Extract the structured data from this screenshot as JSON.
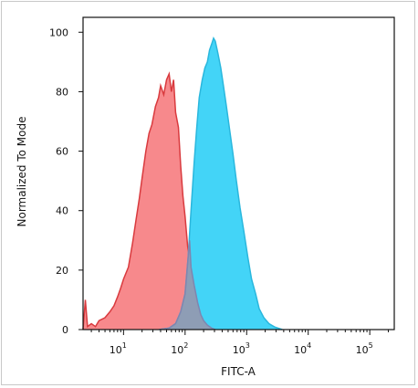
{
  "chart_data": {
    "type": "area",
    "title": "",
    "xlabel": "FITC-A",
    "ylabel": "Normalized To Mode",
    "xscale": "log",
    "xlim": [
      2.2,
      250000
    ],
    "ylim": [
      0,
      105
    ],
    "grid": false,
    "legend": "none",
    "x_ticks": [
      {
        "value": 10,
        "base": "10",
        "exp": "1"
      },
      {
        "value": 100,
        "base": "10",
        "exp": "2"
      },
      {
        "value": 1000,
        "base": "10",
        "exp": "3"
      },
      {
        "value": 10000,
        "base": "10",
        "exp": "4"
      },
      {
        "value": 100000,
        "base": "10",
        "exp": "5"
      }
    ],
    "y_ticks": [
      "0",
      "20",
      "40",
      "60",
      "80",
      "100"
    ],
    "y_tick_values": [
      0,
      20,
      40,
      60,
      80,
      100
    ],
    "series": [
      {
        "fill": "#f7898c",
        "stroke": "#d93a3e",
        "points": [
          [
            2.2,
            0
          ],
          [
            2.4,
            10
          ],
          [
            2.6,
            1
          ],
          [
            3,
            2
          ],
          [
            3.5,
            1
          ],
          [
            4,
            3
          ],
          [
            5,
            4
          ],
          [
            6,
            6
          ],
          [
            7,
            8
          ],
          [
            8,
            11
          ],
          [
            9,
            14
          ],
          [
            10,
            17
          ],
          [
            12,
            21
          ],
          [
            14,
            29
          ],
          [
            16,
            37
          ],
          [
            18,
            44
          ],
          [
            20,
            51
          ],
          [
            23,
            60
          ],
          [
            26,
            66
          ],
          [
            29,
            69
          ],
          [
            33,
            75
          ],
          [
            37,
            78
          ],
          [
            40,
            82
          ],
          [
            45,
            79
          ],
          [
            50,
            84
          ],
          [
            55,
            86
          ],
          [
            60,
            80
          ],
          [
            65,
            84
          ],
          [
            70,
            73
          ],
          [
            78,
            68
          ],
          [
            85,
            55
          ],
          [
            92,
            45
          ],
          [
            100,
            38
          ],
          [
            110,
            28
          ],
          [
            125,
            21
          ],
          [
            140,
            15
          ],
          [
            160,
            9
          ],
          [
            180,
            5
          ],
          [
            200,
            3
          ],
          [
            230,
            1.5
          ],
          [
            270,
            0.5
          ],
          [
            310,
            0
          ]
        ]
      },
      {
        "fill": "#43d4f7",
        "stroke": "#2ab7dd",
        "points": [
          [
            38,
            0
          ],
          [
            55,
            0.5
          ],
          [
            70,
            2
          ],
          [
            85,
            6
          ],
          [
            100,
            12
          ],
          [
            112,
            24
          ],
          [
            125,
            40
          ],
          [
            140,
            56
          ],
          [
            155,
            68
          ],
          [
            170,
            78
          ],
          [
            190,
            84
          ],
          [
            210,
            88
          ],
          [
            230,
            90
          ],
          [
            250,
            94
          ],
          [
            270,
            96
          ],
          [
            290,
            98
          ],
          [
            310,
            97
          ],
          [
            340,
            93
          ],
          [
            380,
            88
          ],
          [
            420,
            82
          ],
          [
            470,
            75
          ],
          [
            530,
            67
          ],
          [
            600,
            59
          ],
          [
            680,
            50
          ],
          [
            780,
            41
          ],
          [
            900,
            33
          ],
          [
            1050,
            24
          ],
          [
            1200,
            17
          ],
          [
            1400,
            12
          ],
          [
            1600,
            7
          ],
          [
            1900,
            4
          ],
          [
            2300,
            2
          ],
          [
            2900,
            0.8
          ],
          [
            3800,
            0
          ]
        ]
      },
      {
        "fill": "#8e9db5",
        "stroke": "#7e86b0",
        "points": [
          [
            38,
            0
          ],
          [
            55,
            0.5
          ],
          [
            70,
            2
          ],
          [
            85,
            6
          ],
          [
            100,
            12
          ],
          [
            112,
            24
          ],
          [
            118,
            30
          ],
          [
            125,
            21
          ],
          [
            140,
            15
          ],
          [
            160,
            9
          ],
          [
            180,
            5
          ],
          [
            200,
            3
          ],
          [
            230,
            1.5
          ],
          [
            270,
            0.5
          ],
          [
            310,
            0
          ]
        ]
      }
    ]
  }
}
